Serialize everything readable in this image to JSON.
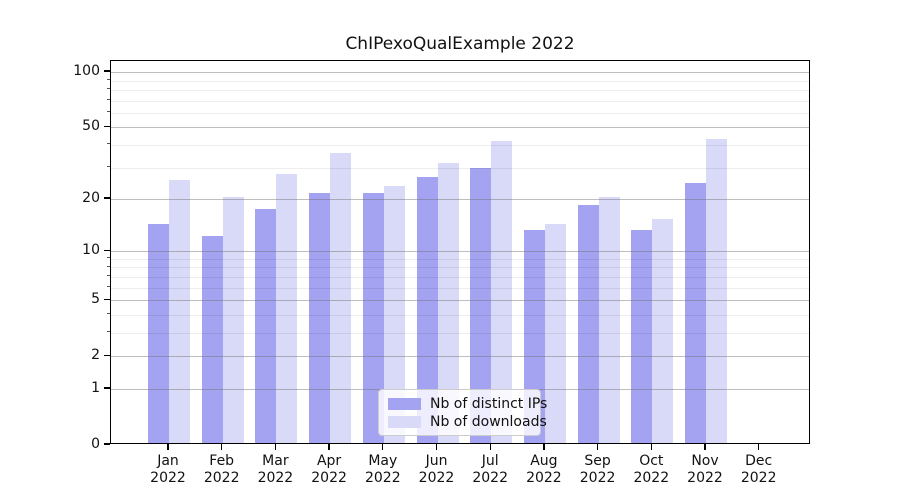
{
  "chart_data": {
    "type": "bar",
    "title": "ChIPexoQualExample 2022",
    "year": "2022",
    "months": [
      "Jan",
      "Feb",
      "Mar",
      "Apr",
      "May",
      "Jun",
      "Jul",
      "Aug",
      "Sep",
      "Oct",
      "Nov",
      "Dec"
    ],
    "categories": [
      "Jan 2022",
      "Feb 2022",
      "Mar 2022",
      "Apr 2022",
      "May 2022",
      "Jun 2022",
      "Jul 2022",
      "Aug 2022",
      "Sep 2022",
      "Oct 2022",
      "Nov 2022",
      "Dec 2022"
    ],
    "series": [
      {
        "name": "Nb of distinct IPs",
        "color": "#a3a3f2",
        "values": [
          14,
          12,
          17,
          21,
          21,
          26,
          29,
          13,
          18,
          13,
          24,
          0
        ]
      },
      {
        "name": "Nb of downloads",
        "color": "#d9d9f8",
        "values": [
          25,
          20,
          27,
          35,
          23,
          31,
          41,
          14,
          20,
          15,
          42,
          0
        ]
      }
    ],
    "yscale": "log1p",
    "ylim": [
      0,
      115
    ],
    "y_major_ticks": [
      100,
      50,
      20,
      10,
      5,
      2,
      1,
      0
    ],
    "y_minor_gridlines": [
      3,
      4,
      6,
      7,
      8,
      9,
      30,
      40,
      60,
      70,
      80,
      90
    ],
    "grid": true,
    "legend_position": "inside lower center",
    "background_color": "#ffffff",
    "axis_color": "#000000",
    "major_grid_color": "#b3b3b3",
    "minor_grid_color": "#ebebeb"
  }
}
